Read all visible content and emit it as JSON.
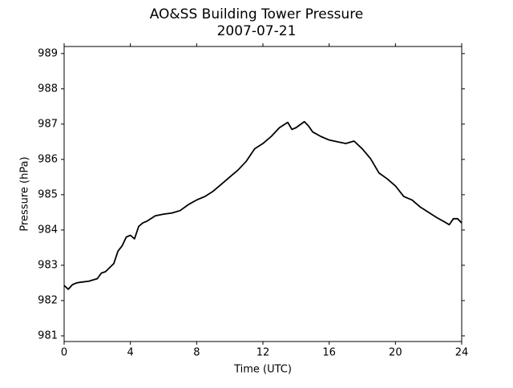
{
  "chart_data": {
    "type": "line",
    "title": "AO&SS Building Tower Pressure",
    "subtitle": "2007-07-21",
    "x_label": "Time (UTC)",
    "y_label": "Pressure (hPa)",
    "x": [
      0,
      0.25,
      0.5,
      0.75,
      1,
      1.5,
      2,
      2.25,
      2.5,
      3,
      3.25,
      3.5,
      3.75,
      4,
      4.25,
      4.5,
      4.75,
      5,
      5.5,
      6,
      6.5,
      7,
      7.5,
      8,
      8.5,
      9,
      9.5,
      10,
      10.5,
      11,
      11.5,
      12,
      12.5,
      13,
      13.5,
      13.75,
      14,
      14.5,
      14.75,
      15,
      15.5,
      16,
      16.5,
      17,
      17.5,
      18,
      18.5,
      19,
      19.5,
      20,
      20.5,
      21,
      21.5,
      22,
      22.5,
      23,
      23.25,
      23.5,
      23.75,
      24
    ],
    "series": [
      {
        "name": "Pressure",
        "color": "#000000",
        "values": [
          982.43,
          982.32,
          982.45,
          982.5,
          982.52,
          982.55,
          982.62,
          982.78,
          982.82,
          983.05,
          983.4,
          983.55,
          983.8,
          983.85,
          983.75,
          984.1,
          984.2,
          984.25,
          984.4,
          984.45,
          984.48,
          984.55,
          984.72,
          984.85,
          984.95,
          985.1,
          985.3,
          985.5,
          985.7,
          985.95,
          986.3,
          986.45,
          986.65,
          986.9,
          987.05,
          986.85,
          986.9,
          987.07,
          986.95,
          986.78,
          986.65,
          986.55,
          986.5,
          986.45,
          986.52,
          986.3,
          986.02,
          985.62,
          985.45,
          985.25,
          984.95,
          984.85,
          984.65,
          984.5,
          984.35,
          984.22,
          984.15,
          984.32,
          984.32,
          984.2
        ]
      }
    ],
    "xlim": [
      0,
      24
    ],
    "xticks": [
      0,
      4,
      8,
      12,
      16,
      20,
      24
    ],
    "ylim": [
      980.84,
      989.2
    ],
    "yticks": [
      981,
      982,
      983,
      984,
      985,
      986,
      987,
      988,
      989
    ]
  }
}
